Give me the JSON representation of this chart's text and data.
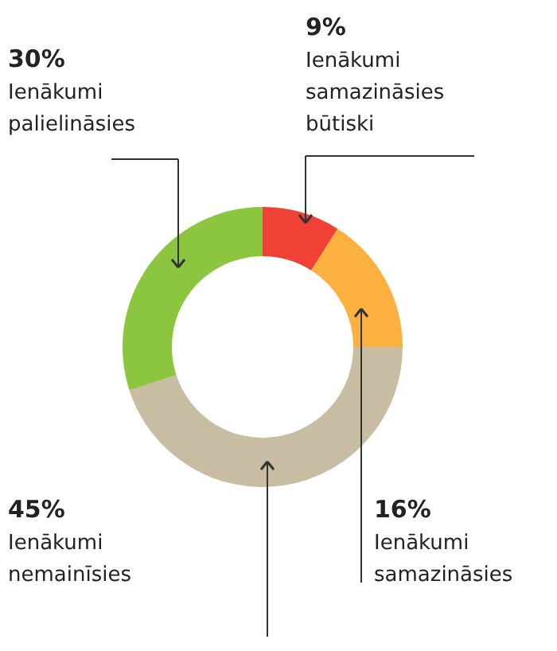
{
  "chart_data": {
    "type": "donut",
    "categories": [
      "Ienākumi samazināsies būtiski",
      "Ienākumi samazināsies",
      "Ienākumi nemainīsies",
      "Ienākumi palielināsies"
    ],
    "values": [
      9,
      16,
      45,
      30
    ],
    "value_labels": [
      "9%",
      "16%",
      "45%",
      "30%"
    ],
    "colors": [
      "#ef4136",
      "#fbb040",
      "#c8bca2",
      "#8cc63f"
    ]
  }
}
